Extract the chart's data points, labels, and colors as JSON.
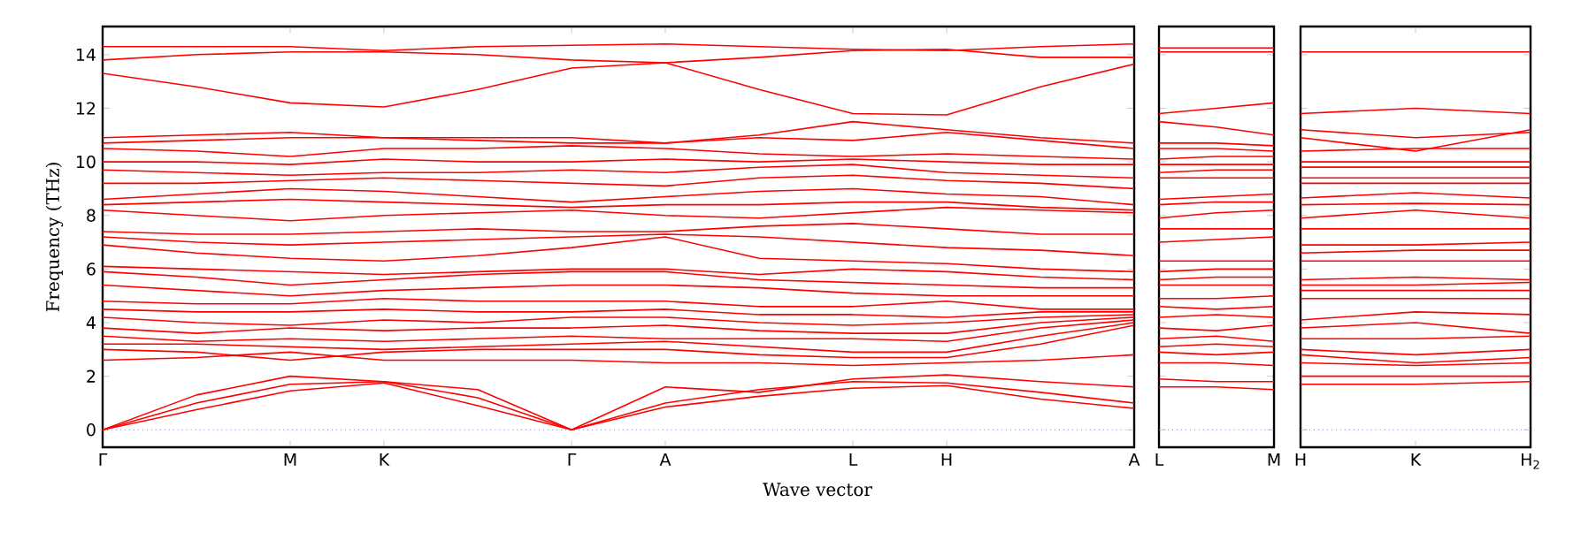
{
  "chart_data": [
    {
      "type": "line",
      "xlabel": "Wave vector",
      "ylabel": "Frequency (THz)",
      "categories": [
        "Γ",
        null,
        "M",
        "K",
        null,
        "Γ",
        "A",
        null,
        "L",
        "H",
        null,
        "A"
      ],
      "ylim": [
        -0.65,
        15.05
      ],
      "yticks": [
        0,
        2,
        4,
        6,
        8,
        10,
        12,
        14
      ],
      "ref_lines": [
        {
          "axis": "y",
          "value": 0,
          "color": "#7777ee",
          "line_style": "dotted"
        }
      ],
      "series": [
        {
          "color": "#ff0000",
          "values": [
            0,
            0.75,
            1.45,
            1.75,
            0.9,
            0,
            0.85,
            1.25,
            1.55,
            1.65,
            1.15,
            0.8
          ]
        },
        {
          "color": "#ff0000",
          "values": [
            0,
            1.0,
            1.7,
            1.8,
            1.2,
            0,
            1.0,
            1.5,
            1.8,
            1.75,
            1.4,
            1.0
          ]
        },
        {
          "color": "#ff0000",
          "values": [
            0,
            1.3,
            2.0,
            1.8,
            1.5,
            0,
            1.6,
            1.4,
            1.9,
            2.05,
            1.8,
            1.6
          ]
        },
        {
          "color": "#ff0000",
          "values": [
            2.6,
            2.7,
            2.9,
            2.6,
            2.6,
            2.6,
            2.5,
            2.5,
            2.4,
            2.5,
            2.6,
            2.8
          ]
        },
        {
          "color": "#ff0000",
          "values": [
            3.0,
            2.9,
            2.6,
            2.9,
            3.0,
            3.0,
            3.0,
            2.8,
            2.7,
            2.7,
            3.2,
            3.9
          ]
        },
        {
          "color": "#ff0000",
          "values": [
            3.2,
            3.2,
            3.1,
            3.0,
            3.1,
            3.2,
            3.3,
            3.1,
            2.9,
            2.9,
            3.5,
            4.0
          ]
        },
        {
          "color": "#ff0000",
          "values": [
            3.5,
            3.3,
            3.4,
            3.3,
            3.4,
            3.5,
            3.4,
            3.4,
            3.4,
            3.3,
            3.8,
            4.1
          ]
        },
        {
          "color": "#ff0000",
          "values": [
            3.8,
            3.6,
            3.8,
            3.7,
            3.8,
            3.8,
            3.9,
            3.7,
            3.6,
            3.6,
            4.0,
            4.2
          ]
        },
        {
          "color": "#ff0000",
          "values": [
            4.2,
            4.0,
            3.9,
            4.1,
            4.0,
            4.2,
            4.2,
            4.0,
            3.9,
            4.0,
            4.2,
            4.3
          ]
        },
        {
          "color": "#ff0000",
          "values": [
            4.5,
            4.4,
            4.4,
            4.5,
            4.4,
            4.4,
            4.5,
            4.3,
            4.3,
            4.2,
            4.4,
            4.4
          ]
        },
        {
          "color": "#ff0000",
          "values": [
            4.8,
            4.7,
            4.7,
            4.9,
            4.8,
            4.8,
            4.8,
            4.6,
            4.6,
            4.8,
            4.5,
            4.5
          ]
        },
        {
          "color": "#ff0000",
          "values": [
            5.4,
            5.2,
            5.0,
            5.2,
            5.3,
            5.4,
            5.4,
            5.3,
            5.1,
            5.0,
            5.0,
            5.0
          ]
        },
        {
          "color": "#ff0000",
          "values": [
            5.9,
            5.7,
            5.4,
            5.6,
            5.8,
            5.9,
            5.9,
            5.6,
            5.5,
            5.4,
            5.3,
            5.3
          ]
        },
        {
          "color": "#ff0000",
          "values": [
            6.1,
            6.0,
            5.9,
            5.8,
            5.9,
            6.0,
            6.0,
            5.8,
            6.0,
            5.9,
            5.7,
            5.6
          ]
        },
        {
          "color": "#ff0000",
          "values": [
            6.9,
            6.6,
            6.4,
            6.3,
            6.5,
            6.8,
            7.2,
            6.4,
            6.3,
            6.2,
            6.0,
            5.9
          ]
        },
        {
          "color": "#ff0000",
          "values": [
            7.2,
            7.0,
            6.9,
            7.0,
            7.1,
            7.2,
            7.3,
            7.2,
            7.0,
            6.8,
            6.7,
            6.5
          ]
        },
        {
          "color": "#ff0000",
          "values": [
            7.4,
            7.3,
            7.3,
            7.4,
            7.5,
            7.4,
            7.4,
            7.6,
            7.7,
            7.5,
            7.3,
            7.3
          ]
        },
        {
          "color": "#ff0000",
          "values": [
            8.2,
            8.0,
            7.8,
            8.0,
            8.1,
            8.2,
            8.0,
            7.9,
            8.1,
            8.3,
            8.2,
            8.1
          ]
        },
        {
          "color": "#ff0000",
          "values": [
            8.4,
            8.5,
            8.6,
            8.5,
            8.4,
            8.3,
            8.4,
            8.4,
            8.5,
            8.5,
            8.3,
            8.2
          ]
        },
        {
          "color": "#ff0000",
          "values": [
            8.6,
            8.8,
            9.0,
            8.9,
            8.7,
            8.5,
            8.7,
            8.9,
            9.0,
            8.8,
            8.7,
            8.4
          ]
        },
        {
          "color": "#ff0000",
          "values": [
            9.2,
            9.2,
            9.3,
            9.4,
            9.3,
            9.2,
            9.1,
            9.4,
            9.5,
            9.3,
            9.2,
            9.0
          ]
        },
        {
          "color": "#ff0000",
          "values": [
            9.7,
            9.6,
            9.5,
            9.6,
            9.6,
            9.7,
            9.6,
            9.8,
            9.9,
            9.6,
            9.5,
            9.4
          ]
        },
        {
          "color": "#ff0000",
          "values": [
            10.0,
            10.0,
            9.9,
            10.1,
            10.0,
            10.0,
            10.1,
            10.0,
            10.1,
            10.0,
            9.9,
            9.9
          ]
        },
        {
          "color": "#ff0000",
          "values": [
            10.5,
            10.4,
            10.2,
            10.5,
            10.5,
            10.6,
            10.5,
            10.3,
            10.2,
            10.3,
            10.2,
            10.1
          ]
        },
        {
          "color": "#ff0000",
          "values": [
            10.7,
            10.8,
            10.9,
            10.9,
            10.8,
            10.7,
            10.7,
            10.9,
            10.8,
            11.1,
            10.8,
            10.5
          ]
        },
        {
          "color": "#ff0000",
          "values": [
            10.9,
            11.0,
            11.1,
            10.9,
            10.9,
            10.9,
            10.7,
            11.0,
            11.5,
            11.2,
            10.9,
            10.7
          ]
        },
        {
          "color": "#ff0000",
          "values": [
            13.3,
            12.8,
            12.2,
            12.05,
            12.7,
            13.5,
            13.7,
            12.7,
            11.8,
            11.75,
            12.8,
            13.65
          ]
        },
        {
          "color": "#ff0000",
          "values": [
            13.8,
            14.0,
            14.1,
            14.1,
            14.0,
            13.8,
            13.7,
            13.9,
            14.15,
            14.2,
            13.9,
            13.9
          ]
        },
        {
          "color": "#ff0000",
          "values": [
            14.3,
            14.3,
            14.3,
            14.15,
            14.3,
            14.35,
            14.4,
            14.3,
            14.2,
            14.15,
            14.3,
            14.4
          ]
        }
      ]
    },
    {
      "type": "line",
      "categories": [
        "L",
        null,
        "M"
      ],
      "ylim": [
        -0.65,
        15.05
      ],
      "yticks": [
        0,
        2,
        4,
        6,
        8,
        10,
        12,
        14
      ],
      "tick_labels": "x",
      "ref_lines": [
        {
          "axis": "y",
          "value": 0,
          "color": "#7777ee",
          "line_style": "dotted"
        }
      ],
      "series": [
        {
          "color": "#ff0000",
          "values": [
            1.6,
            1.6,
            1.5
          ]
        },
        {
          "color": "#ff0000",
          "values": [
            1.9,
            1.8,
            1.8
          ]
        },
        {
          "color": "#ff0000",
          "values": [
            2.5,
            2.5,
            2.4
          ]
        },
        {
          "color": "#ff0000",
          "values": [
            2.9,
            2.8,
            2.9
          ]
        },
        {
          "color": "#ff0000",
          "values": [
            3.1,
            3.2,
            3.1
          ]
        },
        {
          "color": "#ff0000",
          "values": [
            3.4,
            3.5,
            3.3
          ]
        },
        {
          "color": "#ff0000",
          "values": [
            3.8,
            3.7,
            3.9
          ]
        },
        {
          "color": "#ff0000",
          "values": [
            4.2,
            4.3,
            4.2
          ]
        },
        {
          "color": "#ff0000",
          "values": [
            4.6,
            4.5,
            4.6
          ]
        },
        {
          "color": "#ff0000",
          "values": [
            4.9,
            4.9,
            5.0
          ]
        },
        {
          "color": "#ff0000",
          "values": [
            5.4,
            5.4,
            5.4
          ]
        },
        {
          "color": "#ff0000",
          "values": [
            5.6,
            5.7,
            5.7
          ]
        },
        {
          "color": "#ff0000",
          "values": [
            5.9,
            6.0,
            6.0
          ]
        },
        {
          "color": "#ff0000",
          "values": [
            6.3,
            6.3,
            6.3
          ]
        },
        {
          "color": "#ff0000",
          "values": [
            7.0,
            7.1,
            7.2
          ]
        },
        {
          "color": "#ff0000",
          "values": [
            7.5,
            7.5,
            7.5
          ]
        },
        {
          "color": "#ff0000",
          "values": [
            7.9,
            8.1,
            8.2
          ]
        },
        {
          "color": "#ff0000",
          "values": [
            8.4,
            8.5,
            8.5
          ]
        },
        {
          "color": "#ff0000",
          "values": [
            8.6,
            8.7,
            8.8
          ]
        },
        {
          "color": "#ff0000",
          "values": [
            9.4,
            9.4,
            9.4
          ]
        },
        {
          "color": "#ff0000",
          "values": [
            9.6,
            9.7,
            9.7
          ]
        },
        {
          "color": "#ff0000",
          "values": [
            9.9,
            9.9,
            9.9
          ]
        },
        {
          "color": "#ff0000",
          "values": [
            10.1,
            10.2,
            10.2
          ]
        },
        {
          "color": "#ff0000",
          "values": [
            10.5,
            10.5,
            10.4
          ]
        },
        {
          "color": "#ff0000",
          "values": [
            10.7,
            10.7,
            10.6
          ]
        },
        {
          "color": "#ff0000",
          "values": [
            11.5,
            11.3,
            11.0
          ]
        },
        {
          "color": "#ff0000",
          "values": [
            11.8,
            12.0,
            12.2
          ]
        },
        {
          "color": "#ff0000",
          "values": [
            14.1,
            14.1,
            14.1
          ]
        },
        {
          "color": "#ff0000",
          "values": [
            14.25,
            14.25,
            14.25
          ]
        }
      ]
    },
    {
      "type": "line",
      "categories": [
        "H",
        "K",
        "H$_{2}$"
      ],
      "ylim": [
        -0.65,
        15.05
      ],
      "yticks": [
        0,
        2,
        4,
        6,
        8,
        10,
        12,
        14
      ],
      "tick_labels": "x",
      "ref_lines": [
        {
          "axis": "y",
          "value": 0,
          "color": "#7777ee",
          "line_style": "dotted"
        }
      ],
      "series": [
        {
          "color": "#ff0000",
          "values": [
            1.7,
            1.7,
            1.8
          ]
        },
        {
          "color": "#ff0000",
          "values": [
            2.0,
            2.0,
            2.0
          ]
        },
        {
          "color": "#ff0000",
          "values": [
            2.5,
            2.4,
            2.5
          ]
        },
        {
          "color": "#ff0000",
          "values": [
            2.8,
            2.5,
            2.7
          ]
        },
        {
          "color": "#ff0000",
          "values": [
            3.0,
            2.8,
            3.0
          ]
        },
        {
          "color": "#ff0000",
          "values": [
            3.4,
            3.4,
            3.5
          ]
        },
        {
          "color": "#ff0000",
          "values": [
            3.8,
            4.0,
            3.6
          ]
        },
        {
          "color": "#ff0000",
          "values": [
            4.1,
            4.4,
            4.3
          ]
        },
        {
          "color": "#ff0000",
          "values": [
            4.9,
            4.9,
            4.9
          ]
        },
        {
          "color": "#ff0000",
          "values": [
            5.2,
            5.2,
            5.2
          ]
        },
        {
          "color": "#ff0000",
          "values": [
            5.4,
            5.4,
            5.5
          ]
        },
        {
          "color": "#ff0000",
          "values": [
            5.6,
            5.7,
            5.6
          ]
        },
        {
          "color": "#ff0000",
          "values": [
            6.3,
            6.3,
            6.3
          ]
        },
        {
          "color": "#ff0000",
          "values": [
            6.6,
            6.7,
            6.7
          ]
        },
        {
          "color": "#ff0000",
          "values": [
            6.9,
            6.9,
            7.0
          ]
        },
        {
          "color": "#ff0000",
          "values": [
            7.5,
            7.5,
            7.5
          ]
        },
        {
          "color": "#ff0000",
          "values": [
            7.9,
            8.2,
            7.9
          ]
        },
        {
          "color": "#ff0000",
          "values": [
            8.4,
            8.45,
            8.4
          ]
        },
        {
          "color": "#ff0000",
          "values": [
            8.65,
            8.85,
            8.65
          ]
        },
        {
          "color": "#ff0000",
          "values": [
            9.2,
            9.2,
            9.2
          ]
        },
        {
          "color": "#ff0000",
          "values": [
            9.4,
            9.4,
            9.4
          ]
        },
        {
          "color": "#ff0000",
          "values": [
            9.8,
            9.8,
            9.8
          ]
        },
        {
          "color": "#ff0000",
          "values": [
            10.0,
            10.0,
            10.0
          ]
        },
        {
          "color": "#ff0000",
          "values": [
            10.4,
            10.5,
            10.5
          ]
        },
        {
          "color": "#ff0000",
          "values": [
            10.9,
            10.4,
            11.2
          ]
        },
        {
          "color": "#ff0000",
          "values": [
            11.2,
            10.9,
            11.1
          ]
        },
        {
          "color": "#ff0000",
          "values": [
            11.8,
            12.0,
            11.8
          ]
        },
        {
          "color": "#ff0000",
          "values": [
            14.1,
            14.1,
            14.1
          ]
        }
      ]
    }
  ]
}
